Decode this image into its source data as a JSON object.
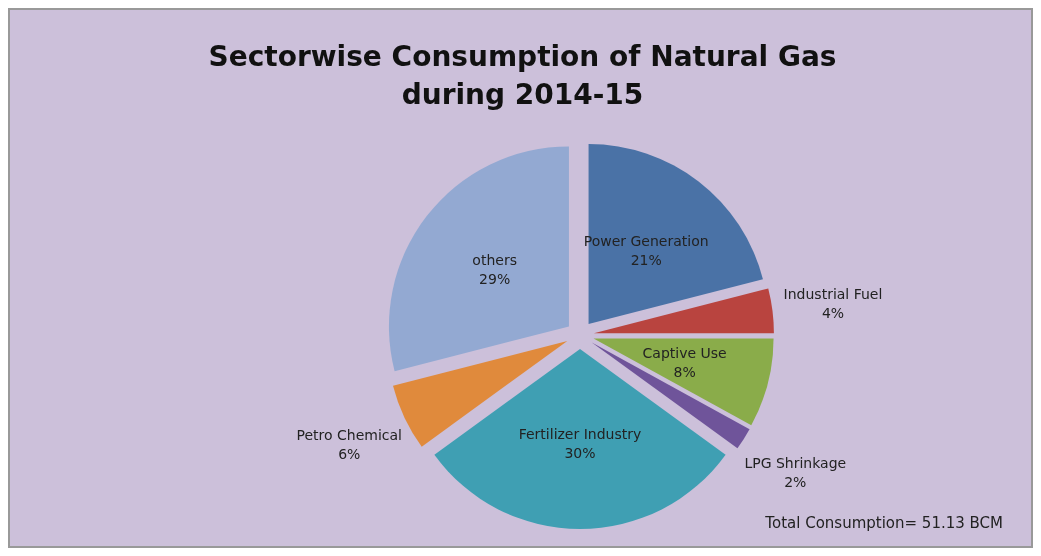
{
  "chart_data": {
    "type": "pie",
    "title": "Sectorwise Consumption of Natural Gas during 2014-15",
    "categories": [
      "Power Generation",
      "Industrial Fuel",
      "Captive Use",
      "LPG Shrinkage",
      "Fertilizer Industry",
      "Petro Chemical",
      "others"
    ],
    "values": [
      21,
      4,
      8,
      2,
      30,
      6,
      29
    ],
    "value_labels": [
      "21%",
      "4%",
      "8%",
      "2%",
      "30%",
      "6%",
      "29%"
    ],
    "colors": [
      "#4a72a6",
      "#b9443f",
      "#8aac4a",
      "#6f549a",
      "#3f9fb3",
      "#e08a3c",
      "#93a9d2"
    ],
    "annotations": [
      "Total Consumption= 51.13 BCM"
    ]
  }
}
